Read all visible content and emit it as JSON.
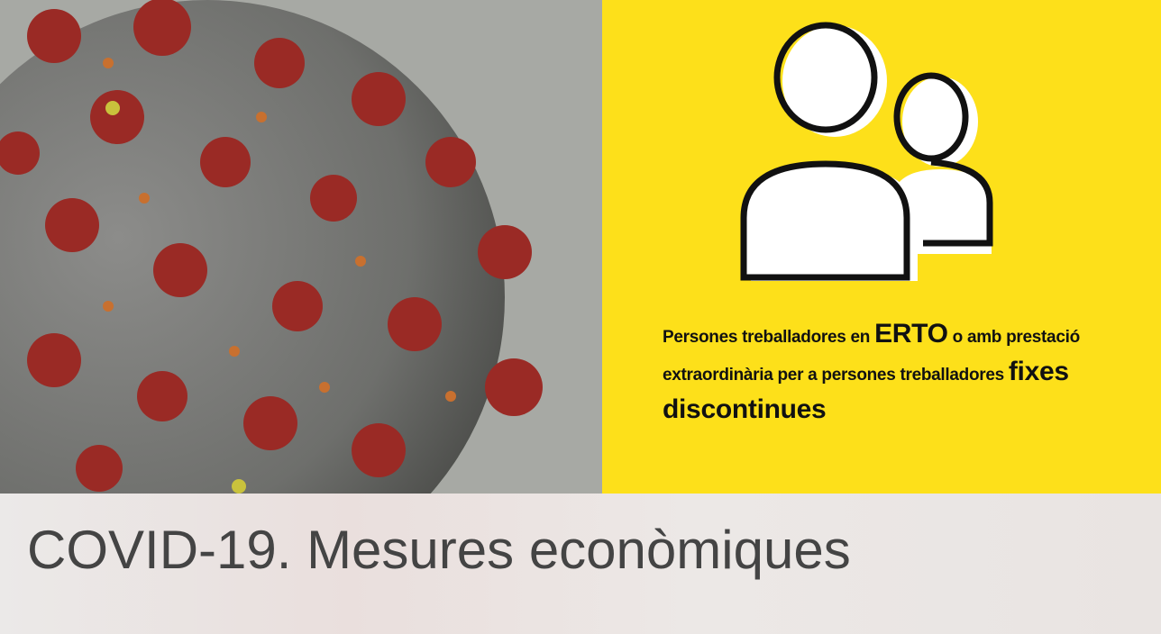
{
  "banner": {
    "description_parts": [
      "Persones treballadores en ",
      "ERTO",
      " o amb prestació extraordinària per a persones treballadores ",
      "fixes discontinues"
    ],
    "title": "COVID-19. Mesures econòmiques"
  }
}
